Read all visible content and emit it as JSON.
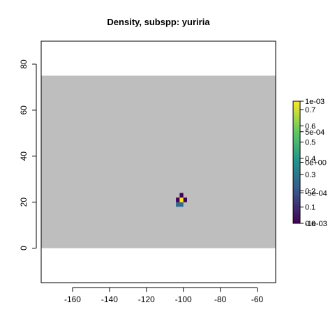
{
  "chart_data": {
    "type": "heatmap",
    "title": "Density, subspp: yuriria",
    "xlabel": "",
    "ylabel": "",
    "xlim": [
      -177,
      -50
    ],
    "ylim": [
      -15,
      90
    ],
    "x_ticks": [
      -160,
      -140,
      -120,
      -100,
      -80,
      -60
    ],
    "y_ticks": [
      0,
      20,
      40,
      60,
      80
    ],
    "grid": false,
    "background_band": {
      "y_range": [
        0,
        75
      ],
      "color": "#bebebe"
    },
    "cell_size": 2,
    "cells": [
      {
        "x": -103,
        "y": 19,
        "value": 0.25,
        "color": "#31688e"
      },
      {
        "x": -101,
        "y": 19,
        "value": 0.25,
        "color": "#31688e"
      },
      {
        "x": -103,
        "y": 21,
        "value": 0.0,
        "color": "#440154"
      },
      {
        "x": -101,
        "y": 21,
        "value": 1.0,
        "color": "#fde725"
      },
      {
        "x": -99,
        "y": 21,
        "value": 0.0,
        "color": "#440154"
      },
      {
        "x": -101,
        "y": 23,
        "value": 0.0,
        "color": "#440154"
      }
    ],
    "legend": {
      "placement": "right",
      "colorbar_colors": [
        "#440154",
        "#3b528b",
        "#21918c",
        "#5ec962",
        "#fde725"
      ],
      "labels_a": [
        "0.0",
        "0.1",
        "0.2",
        "0.3",
        "0.4",
        "0.5",
        "0.6",
        "0.7"
      ],
      "labels_b": [
        "-1e-03",
        "-5e-04",
        "0e+00",
        "5e-04",
        "1e-03"
      ]
    }
  }
}
